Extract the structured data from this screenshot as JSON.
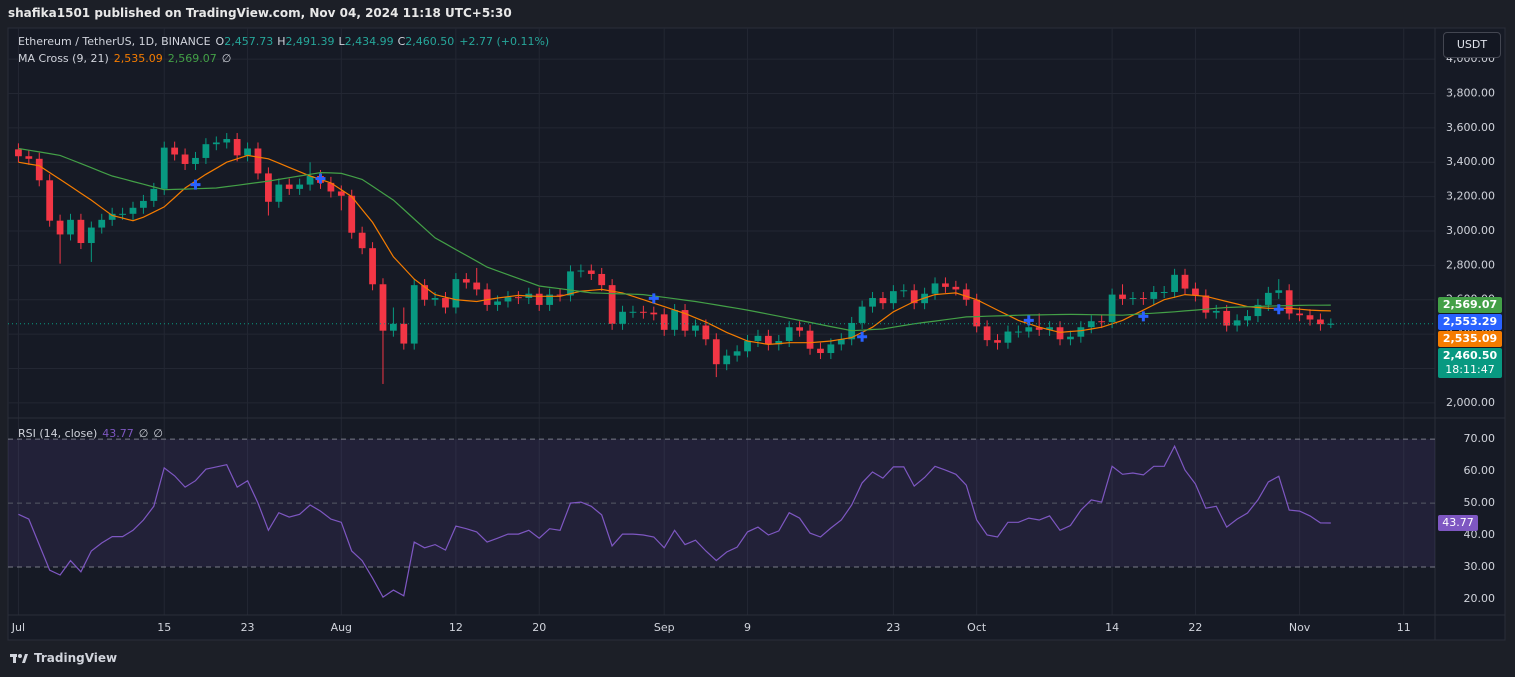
{
  "header": {
    "publisher": "shafika1501 published on TradingView.com, Nov 04, 2024 11:18 UTC+5:30"
  },
  "footer": {
    "brand": "TradingView"
  },
  "chart_data": {
    "type": "candlestick",
    "title": "Ethereum / TetherUS, 1D, BINANCE",
    "ohlc_legend": [
      {
        "key": "O",
        "value": "2,457.73"
      },
      {
        "key": "H",
        "value": "2,491.39"
      },
      {
        "key": "L",
        "value": "2,434.99"
      },
      {
        "key": "C",
        "value": "2,460.50"
      }
    ],
    "change": "+2.77 (+0.11%)",
    "currency": "USDT",
    "xlim": [
      -1,
      136
    ],
    "xticks": [
      {
        "value": 0,
        "label": "Jul"
      },
      {
        "value": 14,
        "label": "15"
      },
      {
        "value": 22,
        "label": "23"
      },
      {
        "value": 31,
        "label": "Aug"
      },
      {
        "value": 42,
        "label": "12"
      },
      {
        "value": 50,
        "label": "20"
      },
      {
        "value": 62,
        "label": "Sep"
      },
      {
        "value": 70,
        "label": "9"
      },
      {
        "value": 84,
        "label": "23"
      },
      {
        "value": 92,
        "label": "Oct"
      },
      {
        "value": 105,
        "label": "14"
      },
      {
        "value": 113,
        "label": "22"
      },
      {
        "value": 123,
        "label": "Nov"
      },
      {
        "value": 133,
        "label": "11"
      }
    ],
    "ylim": [
      1912,
      4181
    ],
    "yticks": [
      {
        "value": 2000,
        "label": "2,000.00"
      },
      {
        "value": 2200,
        "label": "2,200.00"
      },
      {
        "value": 2400,
        "label": "2,400.00"
      },
      {
        "value": 2600,
        "label": "2,600.00"
      },
      {
        "value": 2800,
        "label": "2,800.00"
      },
      {
        "value": 3000,
        "label": "3,000.00"
      },
      {
        "value": 3200,
        "label": "3,200.00"
      },
      {
        "value": 3400,
        "label": "3,400.00"
      },
      {
        "value": 3600,
        "label": "3,600.00"
      },
      {
        "value": 3800,
        "label": "3,800.00"
      },
      {
        "value": 4000,
        "label": "4,000.00"
      }
    ],
    "grid": true,
    "up_color": "#089981",
    "down_color": "#f23645",
    "candles": [
      [
        3475,
        3510,
        3400,
        3435
      ],
      [
        3435,
        3470,
        3385,
        3420
      ],
      [
        3420,
        3455,
        3260,
        3295
      ],
      [
        3295,
        3330,
        3025,
        3060
      ],
      [
        3060,
        3095,
        2810,
        2980
      ],
      [
        2980,
        3100,
        2945,
        3065
      ],
      [
        3065,
        3100,
        2895,
        2930
      ],
      [
        2930,
        3055,
        2820,
        3020
      ],
      [
        3020,
        3100,
        2985,
        3065
      ],
      [
        3065,
        3135,
        3030,
        3100
      ],
      [
        3100,
        3135,
        3065,
        3100
      ],
      [
        3100,
        3170,
        3065,
        3135
      ],
      [
        3135,
        3210,
        3100,
        3175
      ],
      [
        3175,
        3280,
        3140,
        3245
      ],
      [
        3245,
        3520,
        3210,
        3485
      ],
      [
        3485,
        3520,
        3410,
        3445
      ],
      [
        3445,
        3480,
        3355,
        3390
      ],
      [
        3390,
        3460,
        3355,
        3425
      ],
      [
        3425,
        3540,
        3390,
        3505
      ],
      [
        3505,
        3550,
        3470,
        3515
      ],
      [
        3515,
        3570,
        3480,
        3535
      ],
      [
        3535,
        3570,
        3405,
        3440
      ],
      [
        3440,
        3515,
        3405,
        3480
      ],
      [
        3480,
        3515,
        3300,
        3335
      ],
      [
        3335,
        3370,
        3090,
        3170
      ],
      [
        3170,
        3305,
        3135,
        3270
      ],
      [
        3270,
        3305,
        3210,
        3245
      ],
      [
        3245,
        3305,
        3210,
        3270
      ],
      [
        3270,
        3400,
        3235,
        3320
      ],
      [
        3320,
        3355,
        3245,
        3280
      ],
      [
        3280,
        3315,
        3195,
        3230
      ],
      [
        3230,
        3265,
        3120,
        3205
      ],
      [
        3205,
        3240,
        2955,
        2990
      ],
      [
        2990,
        3025,
        2865,
        2900
      ],
      [
        2900,
        2935,
        2655,
        2690
      ],
      [
        2690,
        2725,
        2110,
        2420
      ],
      [
        2420,
        2555,
        2385,
        2460
      ],
      [
        2460,
        2555,
        2310,
        2345
      ],
      [
        2345,
        2720,
        2310,
        2685
      ],
      [
        2685,
        2720,
        2565,
        2600
      ],
      [
        2600,
        2645,
        2565,
        2610
      ],
      [
        2610,
        2645,
        2520,
        2555
      ],
      [
        2555,
        2755,
        2520,
        2720
      ],
      [
        2720,
        2755,
        2665,
        2700
      ],
      [
        2700,
        2785,
        2625,
        2660
      ],
      [
        2660,
        2695,
        2535,
        2570
      ],
      [
        2570,
        2625,
        2535,
        2590
      ],
      [
        2590,
        2650,
        2555,
        2615
      ],
      [
        2615,
        2650,
        2575,
        2610
      ],
      [
        2610,
        2670,
        2575,
        2635
      ],
      [
        2635,
        2670,
        2535,
        2570
      ],
      [
        2570,
        2665,
        2535,
        2630
      ],
      [
        2630,
        2665,
        2590,
        2625
      ],
      [
        2625,
        2800,
        2590,
        2765
      ],
      [
        2765,
        2805,
        2730,
        2770
      ],
      [
        2770,
        2805,
        2715,
        2750
      ],
      [
        2750,
        2785,
        2650,
        2685
      ],
      [
        2685,
        2720,
        2425,
        2460
      ],
      [
        2460,
        2565,
        2425,
        2530
      ],
      [
        2530,
        2565,
        2495,
        2530
      ],
      [
        2530,
        2565,
        2490,
        2525
      ],
      [
        2525,
        2560,
        2480,
        2515
      ],
      [
        2515,
        2550,
        2390,
        2425
      ],
      [
        2425,
        2575,
        2390,
        2540
      ],
      [
        2540,
        2575,
        2385,
        2420
      ],
      [
        2420,
        2485,
        2385,
        2450
      ],
      [
        2450,
        2485,
        2335,
        2370
      ],
      [
        2370,
        2405,
        2150,
        2225
      ],
      [
        2225,
        2310,
        2190,
        2275
      ],
      [
        2275,
        2335,
        2240,
        2300
      ],
      [
        2300,
        2395,
        2265,
        2360
      ],
      [
        2360,
        2425,
        2325,
        2390
      ],
      [
        2390,
        2425,
        2305,
        2340
      ],
      [
        2340,
        2395,
        2305,
        2360
      ],
      [
        2360,
        2475,
        2325,
        2440
      ],
      [
        2440,
        2475,
        2385,
        2420
      ],
      [
        2420,
        2455,
        2280,
        2315
      ],
      [
        2315,
        2350,
        2255,
        2290
      ],
      [
        2290,
        2375,
        2255,
        2340
      ],
      [
        2340,
        2405,
        2305,
        2370
      ],
      [
        2370,
        2500,
        2335,
        2465
      ],
      [
        2465,
        2595,
        2430,
        2560
      ],
      [
        2560,
        2645,
        2525,
        2610
      ],
      [
        2610,
        2645,
        2545,
        2580
      ],
      [
        2580,
        2685,
        2545,
        2650
      ],
      [
        2650,
        2690,
        2615,
        2655
      ],
      [
        2655,
        2690,
        2545,
        2580
      ],
      [
        2580,
        2670,
        2545,
        2635
      ],
      [
        2635,
        2730,
        2600,
        2695
      ],
      [
        2695,
        2730,
        2640,
        2675
      ],
      [
        2675,
        2710,
        2625,
        2660
      ],
      [
        2660,
        2695,
        2565,
        2600
      ],
      [
        2600,
        2635,
        2410,
        2445
      ],
      [
        2445,
        2480,
        2330,
        2365
      ],
      [
        2365,
        2400,
        2310,
        2350
      ],
      [
        2350,
        2450,
        2315,
        2415
      ],
      [
        2415,
        2450,
        2380,
        2415
      ],
      [
        2415,
        2475,
        2380,
        2440
      ],
      [
        2440,
        2520,
        2390,
        2425
      ],
      [
        2425,
        2475,
        2390,
        2440
      ],
      [
        2440,
        2475,
        2335,
        2370
      ],
      [
        2370,
        2420,
        2335,
        2385
      ],
      [
        2385,
        2475,
        2350,
        2440
      ],
      [
        2440,
        2510,
        2405,
        2475
      ],
      [
        2475,
        2510,
        2435,
        2470
      ],
      [
        2470,
        2665,
        2435,
        2630
      ],
      [
        2630,
        2690,
        2570,
        2605
      ],
      [
        2605,
        2645,
        2570,
        2610
      ],
      [
        2610,
        2645,
        2570,
        2605
      ],
      [
        2605,
        2680,
        2570,
        2645
      ],
      [
        2645,
        2680,
        2610,
        2645
      ],
      [
        2645,
        2780,
        2610,
        2745
      ],
      [
        2745,
        2780,
        2630,
        2665
      ],
      [
        2665,
        2700,
        2590,
        2625
      ],
      [
        2625,
        2660,
        2490,
        2525
      ],
      [
        2525,
        2570,
        2490,
        2535
      ],
      [
        2535,
        2570,
        2415,
        2450
      ],
      [
        2450,
        2515,
        2415,
        2480
      ],
      [
        2480,
        2540,
        2445,
        2505
      ],
      [
        2505,
        2605,
        2470,
        2570
      ],
      [
        2570,
        2675,
        2535,
        2640
      ],
      [
        2640,
        2720,
        2605,
        2655
      ],
      [
        2655,
        2690,
        2485,
        2520
      ],
      [
        2520,
        2555,
        2475,
        2510
      ],
      [
        2510,
        2545,
        2450,
        2485
      ],
      [
        2485,
        2520,
        2420,
        2457.73
      ],
      [
        2457.73,
        2491.39,
        2434.99,
        2460.5
      ]
    ],
    "indicator": {
      "name": "MA Cross (9, 21)",
      "extra": "∅",
      "series": [
        {
          "color": "#f57c00",
          "value_label": "2,535.09",
          "values": [
            3400,
            3390,
            3380,
            3340,
            3300,
            3260,
            3220,
            3180,
            3135,
            3090,
            3075,
            3060,
            3080,
            3110,
            3140,
            3195,
            3250,
            3290,
            3330,
            3365,
            3400,
            3420,
            3440,
            3430,
            3420,
            3395,
            3370,
            3345,
            3320,
            3300,
            3280,
            3240,
            3200,
            3125,
            3050,
            2950,
            2850,
            2785,
            2720,
            2675,
            2630,
            2615,
            2600,
            2595,
            2590,
            2600,
            2610,
            2618,
            2625,
            2622,
            2620,
            2620,
            2620,
            2635,
            2650,
            2655,
            2660,
            2650,
            2640,
            2620,
            2600,
            2580,
            2560,
            2540,
            2520,
            2495,
            2470,
            2440,
            2410,
            2385,
            2360,
            2350,
            2340,
            2345,
            2350,
            2350,
            2350,
            2355,
            2360,
            2370,
            2380,
            2410,
            2440,
            2485,
            2530,
            2560,
            2590,
            2610,
            2630,
            2635,
            2640,
            2620,
            2600,
            2570,
            2540,
            2510,
            2480,
            2460,
            2440,
            2425,
            2410,
            2415,
            2420,
            2430,
            2440,
            2460,
            2480,
            2510,
            2540,
            2570,
            2600,
            2615,
            2630,
            2625,
            2620,
            2605,
            2590,
            2575,
            2560,
            2555,
            2550,
            2550,
            2550,
            2545,
            2540,
            2537,
            2535.09
          ]
        },
        {
          "color": "#43a047",
          "value_label": "2,569.07",
          "values": [
            3480,
            3470,
            3460,
            3450,
            3440,
            3416,
            3392,
            3368,
            3344,
            3320,
            3304,
            3288,
            3272,
            3256,
            3240,
            3242,
            3244,
            3246,
            3248,
            3250,
            3258,
            3266,
            3274,
            3282,
            3290,
            3300,
            3310,
            3320,
            3330,
            3340,
            3338,
            3335,
            3318,
            3300,
            3260,
            3220,
            3180,
            3125,
            3070,
            3015,
            2960,
            2926,
            2892,
            2858,
            2824,
            2790,
            2768,
            2746,
            2724,
            2702,
            2680,
            2672,
            2664,
            2656,
            2648,
            2640,
            2638,
            2636,
            2634,
            2632,
            2630,
            2622,
            2614,
            2606,
            2598,
            2590,
            2580,
            2570,
            2560,
            2550,
            2540,
            2528,
            2516,
            2504,
            2492,
            2480,
            2468,
            2456,
            2444,
            2432,
            2420,
            2423,
            2427,
            2430,
            2440,
            2450,
            2460,
            2468,
            2476,
            2484,
            2492,
            2500,
            2502,
            2504,
            2506,
            2508,
            2510,
            2511,
            2512,
            2513,
            2514,
            2515,
            2514,
            2513,
            2512,
            2511,
            2510,
            2514,
            2518,
            2522,
            2526,
            2530,
            2535,
            2540,
            2545,
            2550,
            2555,
            2557,
            2559,
            2561,
            2563,
            2565,
            2566,
            2567,
            2568,
            2568.5,
            2569.07
          ]
        }
      ]
    },
    "crosses": {
      "color": "#2962ff",
      "x": [
        17,
        29,
        61,
        81,
        97,
        108,
        121
      ],
      "values": [
        3270,
        3305,
        2608,
        2385,
        2480,
        2503,
        2545
      ]
    },
    "price_labels": [
      {
        "value": 2569.07,
        "label": "2,569.07",
        "color": "#43a047"
      },
      {
        "value": 2553.29,
        "label": "2,553.29",
        "color": "#2962ff"
      },
      {
        "value": 2535.09,
        "label": "2,535.09",
        "color": "#f57c00"
      },
      {
        "value": 2460.5,
        "label": "2,460.50",
        "color": "#089981"
      }
    ],
    "countdown": "18:11:47",
    "rsi": {
      "name": "RSI (14, close)",
      "value_label": "43.77",
      "extras": [
        "∅",
        "∅"
      ],
      "color": "#7e57c2",
      "ylim": [
        15,
        76.6
      ],
      "yticks": [
        {
          "value": 20,
          "label": "20.00"
        },
        {
          "value": 30,
          "label": "30.00"
        },
        {
          "value": 40,
          "label": "40.00"
        },
        {
          "value": 50,
          "label": "50.00"
        },
        {
          "value": 60,
          "label": "60.00"
        },
        {
          "value": 70,
          "label": "70.00"
        }
      ],
      "band": [
        30,
        70
      ],
      "middle": 50,
      "values": [
        46.5,
        45,
        37,
        29,
        27.5,
        32,
        28.5,
        35,
        37.5,
        39.5,
        39.5,
        41.5,
        44.7,
        49,
        61,
        58.5,
        55,
        57,
        60.6,
        61.3,
        62,
        55,
        57,
        50,
        41.5,
        47,
        45.6,
        46.5,
        49.4,
        47.5,
        45,
        44,
        35,
        32,
        26.5,
        20.6,
        22.8,
        21,
        37.8,
        36,
        37,
        35.3,
        42.8,
        42,
        41,
        37.8,
        39,
        40.3,
        40.3,
        41.5,
        39,
        42,
        41.5,
        50,
        50.3,
        49,
        46.3,
        36.6,
        40.3,
        40.3,
        40,
        39.4,
        36,
        41.5,
        37,
        38.4,
        35,
        32,
        34.7,
        36.2,
        41,
        42.5,
        40,
        41.3,
        47,
        45.3,
        40.6,
        39.4,
        42.2,
        44.7,
        49.4,
        56.3,
        59.7,
        57.8,
        61.3,
        61.3,
        55.3,
        58,
        61.5,
        60.3,
        59,
        55.6,
        44.7,
        40,
        39.4,
        44,
        44,
        45.3,
        44.7,
        46,
        41.5,
        43,
        47.8,
        51,
        50.3,
        61.5,
        59,
        59.4,
        58.8,
        61.5,
        61.5,
        67.8,
        60.3,
        56,
        48.4,
        49,
        42.5,
        45,
        46.9,
        51,
        56.6,
        58.4,
        47.8,
        47.5,
        46,
        43.8,
        43.77
      ]
    }
  }
}
